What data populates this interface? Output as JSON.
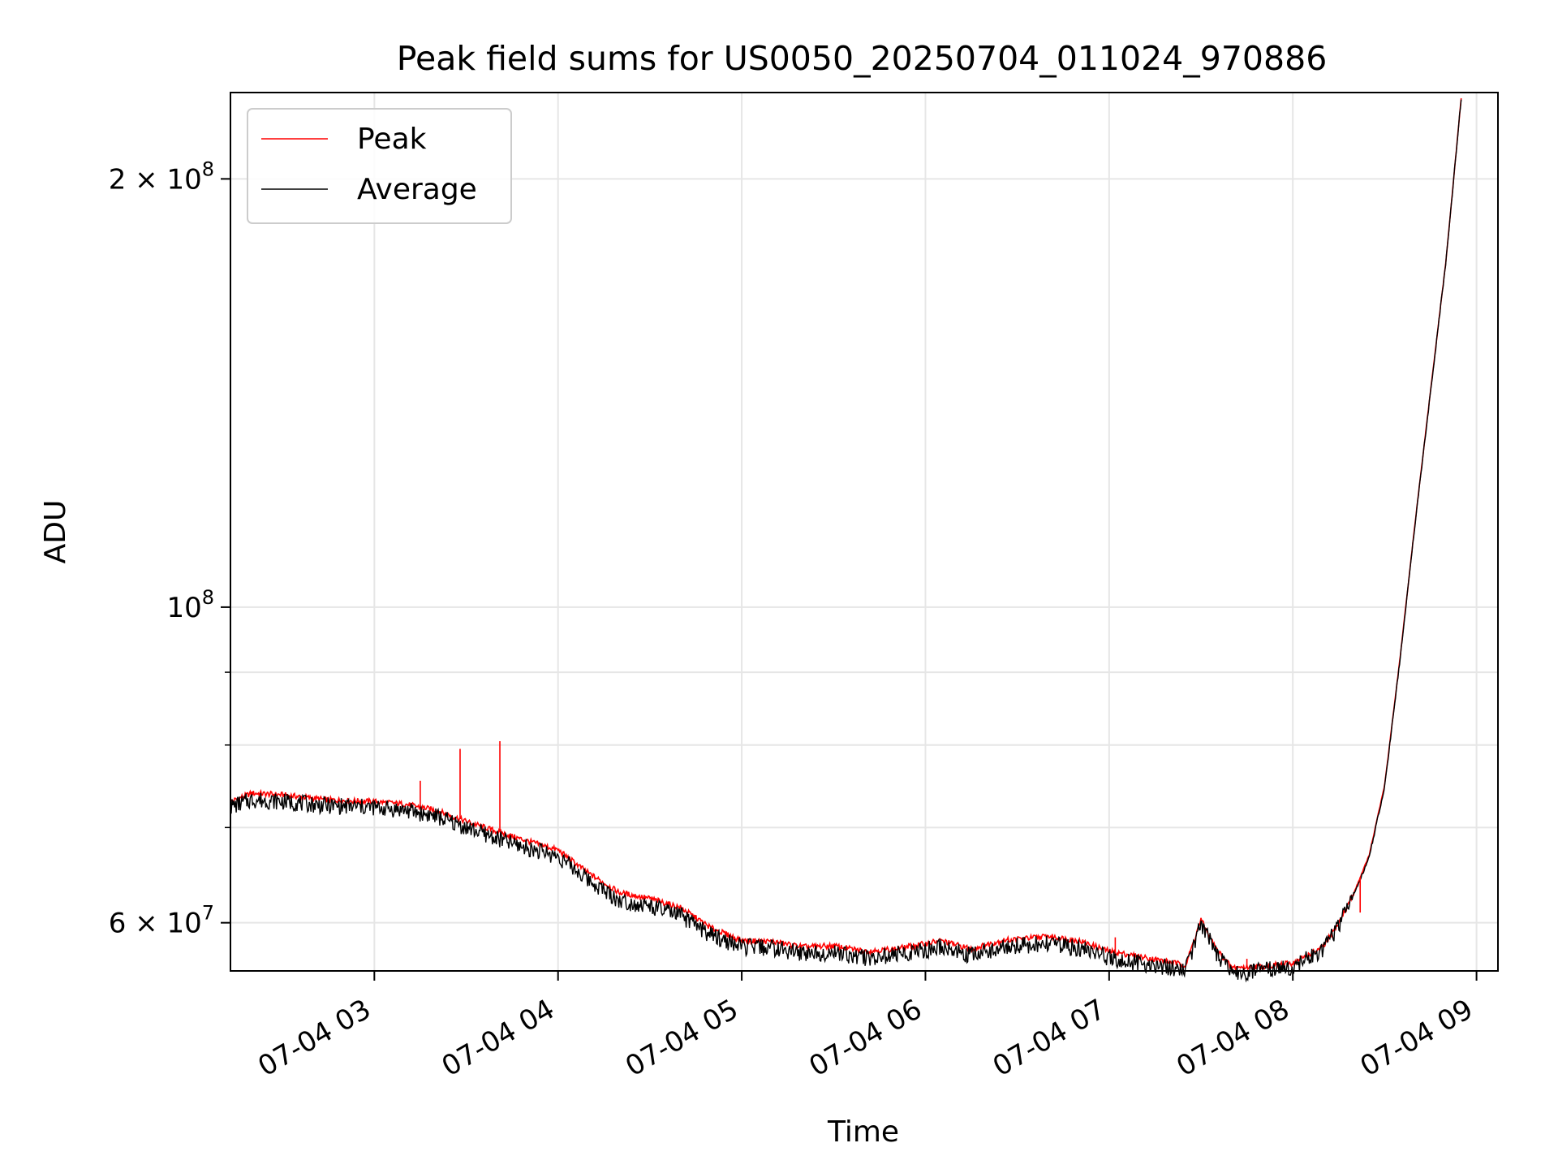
{
  "chart_data": {
    "type": "line",
    "title": "Peak field sums for US0050_20250704_011024_970886",
    "xlabel": "Time",
    "ylabel": "ADU",
    "yscale": "log",
    "xlim": [
      "2025-07-04 02:13",
      "2025-07-04 09:07"
    ],
    "ylim": [
      55500000,
      230000000
    ],
    "grid": true,
    "legend_position": "upper left",
    "x_ticks": [
      "07-04 03",
      "07-04 04",
      "07-04 05",
      "07-04 06",
      "07-04 07",
      "07-04 08",
      "07-04 09"
    ],
    "y_ticks": [
      {
        "value": 60000000,
        "label": "6 × 10",
        "exp": "7"
      },
      {
        "value": 100000000,
        "label": "10",
        "exp": "8"
      },
      {
        "value": 200000000,
        "label": "2 × 10",
        "exp": "8"
      }
    ],
    "x_tick_times": [
      "2025-07-04 03:00",
      "2025-07-04 04:00",
      "2025-07-04 05:00",
      "2025-07-04 06:00",
      "2025-07-04 07:00",
      "2025-07-04 08:00",
      "2025-07-04 09:00"
    ],
    "series": [
      {
        "name": "Peak",
        "color": "#ff0000",
        "x": [
          "2025-07-04 02:13",
          "2025-07-04 02:20",
          "2025-07-04 02:30",
          "2025-07-04 02:45",
          "2025-07-04 03:00",
          "2025-07-04 03:10",
          "2025-07-04 03:20",
          "2025-07-04 03:30",
          "2025-07-04 03:45",
          "2025-07-04 04:00",
          "2025-07-04 04:10",
          "2025-07-04 04:20",
          "2025-07-04 04:30",
          "2025-07-04 04:40",
          "2025-07-04 04:50",
          "2025-07-04 05:00",
          "2025-07-04 05:10",
          "2025-07-04 05:20",
          "2025-07-04 05:30",
          "2025-07-04 05:40",
          "2025-07-04 05:50",
          "2025-07-04 06:00",
          "2025-07-04 06:05",
          "2025-07-04 06:15",
          "2025-07-04 06:25",
          "2025-07-04 06:40",
          "2025-07-04 06:50",
          "2025-07-04 07:00",
          "2025-07-04 07:10",
          "2025-07-04 07:20",
          "2025-07-04 07:25",
          "2025-07-04 07:30",
          "2025-07-04 07:35",
          "2025-07-04 07:40",
          "2025-07-04 07:50",
          "2025-07-04 08:00",
          "2025-07-04 08:10",
          "2025-07-04 08:15",
          "2025-07-04 08:20",
          "2025-07-04 08:25",
          "2025-07-04 08:30",
          "2025-07-04 08:35",
          "2025-07-04 08:40",
          "2025-07-04 08:45",
          "2025-07-04 08:50",
          "2025-07-04 08:55"
        ],
        "values": [
          73000000,
          74000000,
          73800000,
          73200000,
          73000000,
          72700000,
          72000000,
          70700000,
          69000000,
          67500000,
          65000000,
          63000000,
          62400000,
          61500000,
          59500000,
          58300000,
          58200000,
          57700000,
          57800000,
          57300000,
          57500000,
          58000000,
          58300000,
          57500000,
          58300000,
          58700000,
          58300000,
          57300000,
          56800000,
          56300000,
          56000000,
          60300000,
          57500000,
          55800000,
          55900000,
          56200000,
          57700000,
          60000000,
          63000000,
          67000000,
          75000000,
          92000000,
          115000000,
          142000000,
          175000000,
          228000000
        ]
      },
      {
        "name": "Average",
        "color": "#000000",
        "x": [
          "2025-07-04 02:13",
          "2025-07-04 02:20",
          "2025-07-04 02:30",
          "2025-07-04 02:45",
          "2025-07-04 03:00",
          "2025-07-04 03:10",
          "2025-07-04 03:20",
          "2025-07-04 03:30",
          "2025-07-04 03:45",
          "2025-07-04 04:00",
          "2025-07-04 04:10",
          "2025-07-04 04:20",
          "2025-07-04 04:30",
          "2025-07-04 04:40",
          "2025-07-04 04:50",
          "2025-07-04 05:00",
          "2025-07-04 05:10",
          "2025-07-04 05:20",
          "2025-07-04 05:30",
          "2025-07-04 05:40",
          "2025-07-04 05:50",
          "2025-07-04 06:00",
          "2025-07-04 06:05",
          "2025-07-04 06:15",
          "2025-07-04 06:25",
          "2025-07-04 06:40",
          "2025-07-04 06:50",
          "2025-07-04 07:00",
          "2025-07-04 07:10",
          "2025-07-04 07:20",
          "2025-07-04 07:25",
          "2025-07-04 07:30",
          "2025-07-04 07:35",
          "2025-07-04 07:40",
          "2025-07-04 07:50",
          "2025-07-04 08:00",
          "2025-07-04 08:10",
          "2025-07-04 08:15",
          "2025-07-04 08:20",
          "2025-07-04 08:25",
          "2025-07-04 08:30",
          "2025-07-04 08:35",
          "2025-07-04 08:40",
          "2025-07-04 08:45",
          "2025-07-04 08:50",
          "2025-07-04 08:55"
        ],
        "values": [
          72400000,
          73200000,
          73000000,
          72500000,
          72300000,
          72000000,
          71300000,
          70000000,
          68200000,
          66800000,
          64300000,
          62200000,
          61600000,
          60700000,
          58800000,
          57700000,
          57600000,
          57100000,
          57200000,
          56700000,
          56900000,
          57400000,
          57700000,
          56900000,
          57700000,
          58000000,
          57600000,
          56700000,
          56200000,
          55800000,
          55500000,
          60000000,
          57000000,
          55300000,
          55500000,
          55900000,
          57400000,
          59800000,
          62800000,
          66800000,
          74800000,
          91800000,
          114800000,
          141800000,
          174800000,
          228000000
        ]
      }
    ],
    "spikes": [
      {
        "series": "Peak",
        "x": "2025-07-04 03:15",
        "value": 75500000
      },
      {
        "series": "Peak",
        "x": "2025-07-04 03:28",
        "value": 79500000
      },
      {
        "series": "Peak",
        "x": "2025-07-04 03:41",
        "value": 80500000
      },
      {
        "series": "Peak",
        "x": "2025-07-04 07:02",
        "value": 58600000
      },
      {
        "series": "Peak",
        "x": "2025-07-04 07:45",
        "value": 56600000
      },
      {
        "series": "Peak",
        "x": "2025-07-04 08:22",
        "value": 61000000
      }
    ]
  }
}
